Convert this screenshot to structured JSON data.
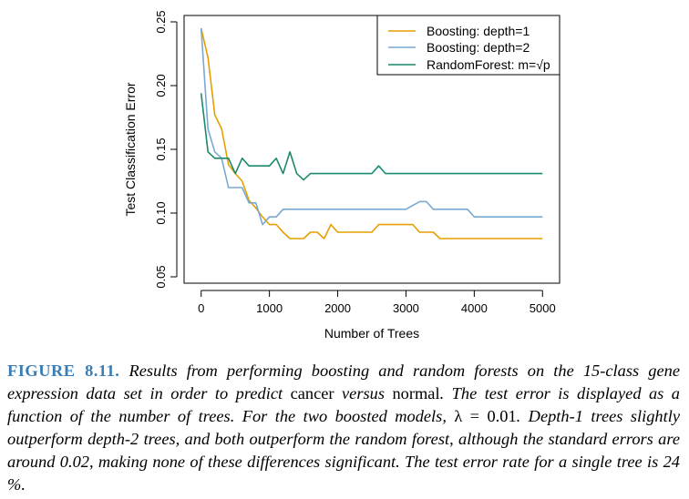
{
  "chart_data": {
    "type": "line",
    "title": "",
    "xlabel": "Number of Trees",
    "ylabel": "Test Classification Error",
    "xlim": [
      -250,
      5250
    ],
    "ylim": [
      0.045,
      0.255
    ],
    "xticks": [
      0,
      1000,
      2000,
      3000,
      4000,
      5000
    ],
    "xtick_labels": [
      "0",
      "1000",
      "2000",
      "3000",
      "4000",
      "5000"
    ],
    "yticks": [
      0.05,
      0.1,
      0.15,
      0.2,
      0.25
    ],
    "ytick_labels": [
      "0.05",
      "0.10",
      "0.15",
      "0.20",
      "0.25"
    ],
    "legend_position": "top-right",
    "grid": false,
    "series": [
      {
        "name": "Boosting: depth=1",
        "color": "#e69f00",
        "points": [
          [
            0,
            0.245
          ],
          [
            100,
            0.222
          ],
          [
            200,
            0.177
          ],
          [
            300,
            0.166
          ],
          [
            400,
            0.138
          ],
          [
            500,
            0.131
          ],
          [
            600,
            0.125
          ],
          [
            700,
            0.11
          ],
          [
            800,
            0.104
          ],
          [
            900,
            0.097
          ],
          [
            1000,
            0.091
          ],
          [
            1100,
            0.091
          ],
          [
            1200,
            0.085
          ],
          [
            1300,
            0.08
          ],
          [
            1400,
            0.08
          ],
          [
            1500,
            0.08
          ],
          [
            1600,
            0.085
          ],
          [
            1700,
            0.085
          ],
          [
            1800,
            0.08
          ],
          [
            1900,
            0.091
          ],
          [
            2000,
            0.085
          ],
          [
            2100,
            0.085
          ],
          [
            2200,
            0.085
          ],
          [
            2400,
            0.085
          ],
          [
            2500,
            0.085
          ],
          [
            2600,
            0.091
          ],
          [
            3000,
            0.091
          ],
          [
            3100,
            0.091
          ],
          [
            3200,
            0.085
          ],
          [
            3400,
            0.085
          ],
          [
            3500,
            0.08
          ],
          [
            4000,
            0.08
          ],
          [
            4500,
            0.08
          ],
          [
            5000,
            0.08
          ]
        ]
      },
      {
        "name": "Boosting: depth=2",
        "color": "#78a9d3",
        "points": [
          [
            0,
            0.245
          ],
          [
            100,
            0.166
          ],
          [
            200,
            0.148
          ],
          [
            300,
            0.143
          ],
          [
            400,
            0.12
          ],
          [
            500,
            0.12
          ],
          [
            600,
            0.12
          ],
          [
            700,
            0.108
          ],
          [
            800,
            0.108
          ],
          [
            900,
            0.091
          ],
          [
            1000,
            0.097
          ],
          [
            1100,
            0.097
          ],
          [
            1200,
            0.103
          ],
          [
            1500,
            0.103
          ],
          [
            2000,
            0.103
          ],
          [
            2500,
            0.103
          ],
          [
            3000,
            0.103
          ],
          [
            3200,
            0.109
          ],
          [
            3300,
            0.109
          ],
          [
            3400,
            0.103
          ],
          [
            3900,
            0.103
          ],
          [
            4000,
            0.097
          ],
          [
            4500,
            0.097
          ],
          [
            5000,
            0.097
          ]
        ]
      },
      {
        "name": "RandomForest: m=√p",
        "color": "#1a8a6e",
        "points": [
          [
            0,
            0.194
          ],
          [
            100,
            0.148
          ],
          [
            200,
            0.143
          ],
          [
            300,
            0.143
          ],
          [
            400,
            0.143
          ],
          [
            500,
            0.131
          ],
          [
            600,
            0.143
          ],
          [
            700,
            0.137
          ],
          [
            800,
            0.137
          ],
          [
            900,
            0.137
          ],
          [
            1000,
            0.137
          ],
          [
            1100,
            0.143
          ],
          [
            1200,
            0.131
          ],
          [
            1300,
            0.148
          ],
          [
            1400,
            0.131
          ],
          [
            1500,
            0.126
          ],
          [
            1600,
            0.131
          ],
          [
            2000,
            0.131
          ],
          [
            2500,
            0.131
          ],
          [
            2600,
            0.137
          ],
          [
            2700,
            0.131
          ],
          [
            3000,
            0.131
          ],
          [
            4000,
            0.131
          ],
          [
            5000,
            0.131
          ]
        ]
      }
    ]
  },
  "caption": {
    "label": "FIGURE 8.11.",
    "t1": " Results from performing boosting and random forests on the 15-class gene expression data set in order to predict ",
    "w_cancer": "cancer",
    "t2": " versus ",
    "w_normal": "normal",
    "t3": ". The test error is displayed as a function of the number of trees. For the two boosted models, ",
    "math": "λ = 0.01",
    "t4": ". Depth-1 trees slightly outperform depth-2 trees, and both outperform the random forest, although the standard errors are around 0.02, making none of these differences significant. The test error rate for a single tree is 24 %."
  }
}
